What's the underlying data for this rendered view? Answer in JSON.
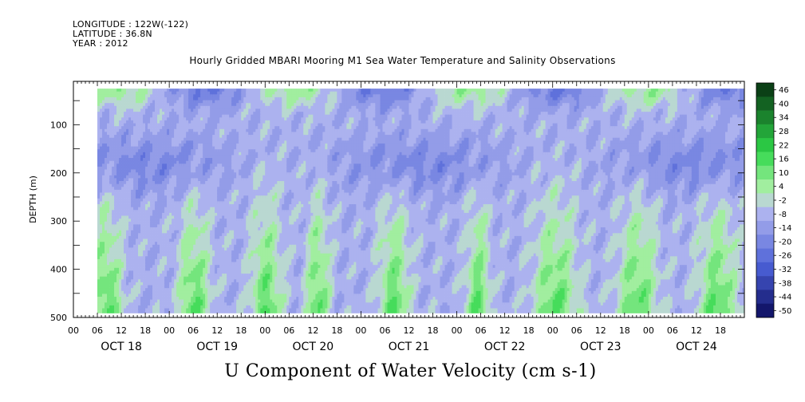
{
  "header": {
    "longitude": "LONGITUDE : 122W(-122)",
    "latitude": "LATITUDE : 36.8N",
    "year": "YEAR : 2012"
  },
  "chart_data": {
    "type": "heatmap",
    "title": "Hourly Gridded MBARI Mooring M1 Sea Water Temperature and Salinity Observations",
    "variable_label": "U Component of Water Velocity (cm s-1)",
    "ylabel": "DEPTH (m)",
    "ylim": [
      500,
      10
    ],
    "y_ticks": [
      100,
      200,
      300,
      400,
      500
    ],
    "x_hour_ticks": [
      "00",
      "06",
      "12",
      "18",
      "00",
      "06",
      "12",
      "18",
      "00",
      "06",
      "12",
      "18",
      "00",
      "06",
      "12",
      "18",
      "00",
      "06",
      "12",
      "18",
      "00",
      "06",
      "12",
      "18",
      "00",
      "06",
      "12",
      "18"
    ],
    "x_day_labels": [
      "OCT 18",
      "OCT 19",
      "OCT 20",
      "OCT 21",
      "OCT 22",
      "OCT 23",
      "OCT 24"
    ],
    "data_start_hour": 6,
    "data_depth_range": [
      25,
      485
    ],
    "colorbar_levels": [
      -50,
      -44,
      -38,
      -32,
      -26,
      -20,
      -14,
      -8,
      -2,
      4,
      10,
      16,
      22,
      28,
      34,
      40,
      46
    ],
    "colorbar_labels": [
      "46",
      "40",
      "34",
      "28",
      "22",
      "16",
      "10",
      "4",
      "-2",
      "-8",
      "-14",
      "-20",
      "-26",
      "-32",
      "-38",
      "-44",
      "-50"
    ],
    "colors": {
      "negative_high": "#0a0a5a",
      "negative_mid": "#4a5fd6",
      "negative_low": "#b9bdf2",
      "positive_low": "#b8f2b0",
      "positive_mid": "#2fd84a",
      "positive_high": "#0a3a14"
    },
    "grid": false,
    "colorbar_position": "right"
  }
}
